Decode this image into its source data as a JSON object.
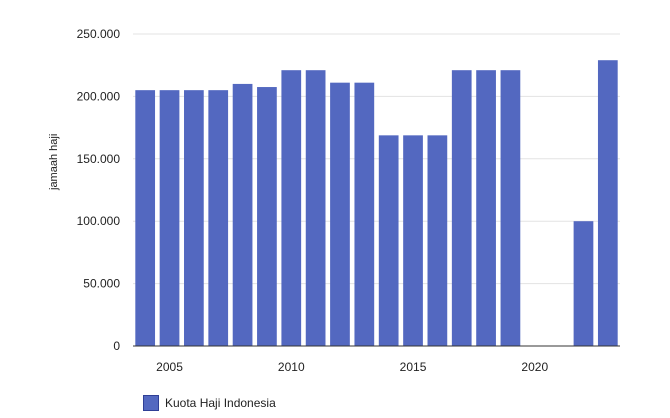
{
  "chart_data": {
    "type": "bar",
    "categories": [
      "2004",
      "2005",
      "2006",
      "2007",
      "2008",
      "2009",
      "2010",
      "2011",
      "2012",
      "2013",
      "2014",
      "2015",
      "2016",
      "2017",
      "2018",
      "2019",
      "2020",
      "2021",
      "2022",
      "2023"
    ],
    "series": [
      {
        "name": "Kuota Haji Indonesia",
        "color": "#5368c0",
        "values": [
          205000,
          205000,
          205000,
          205000,
          210000,
          207500,
          221000,
          221000,
          211000,
          211000,
          168800,
          168800,
          168800,
          221000,
          221000,
          221000,
          0,
          0,
          100000,
          229000
        ]
      }
    ],
    "x_tick_labels": [
      "2005",
      "2010",
      "2015",
      "2020"
    ],
    "y_tick_labels": [
      "0",
      "50.000",
      "100.000",
      "150.000",
      "200.000",
      "250.000"
    ],
    "xlabel": "",
    "ylabel": "jamaah haji",
    "ylim": [
      0,
      250000
    ],
    "grid": true,
    "legend_position": "bottom-left"
  }
}
